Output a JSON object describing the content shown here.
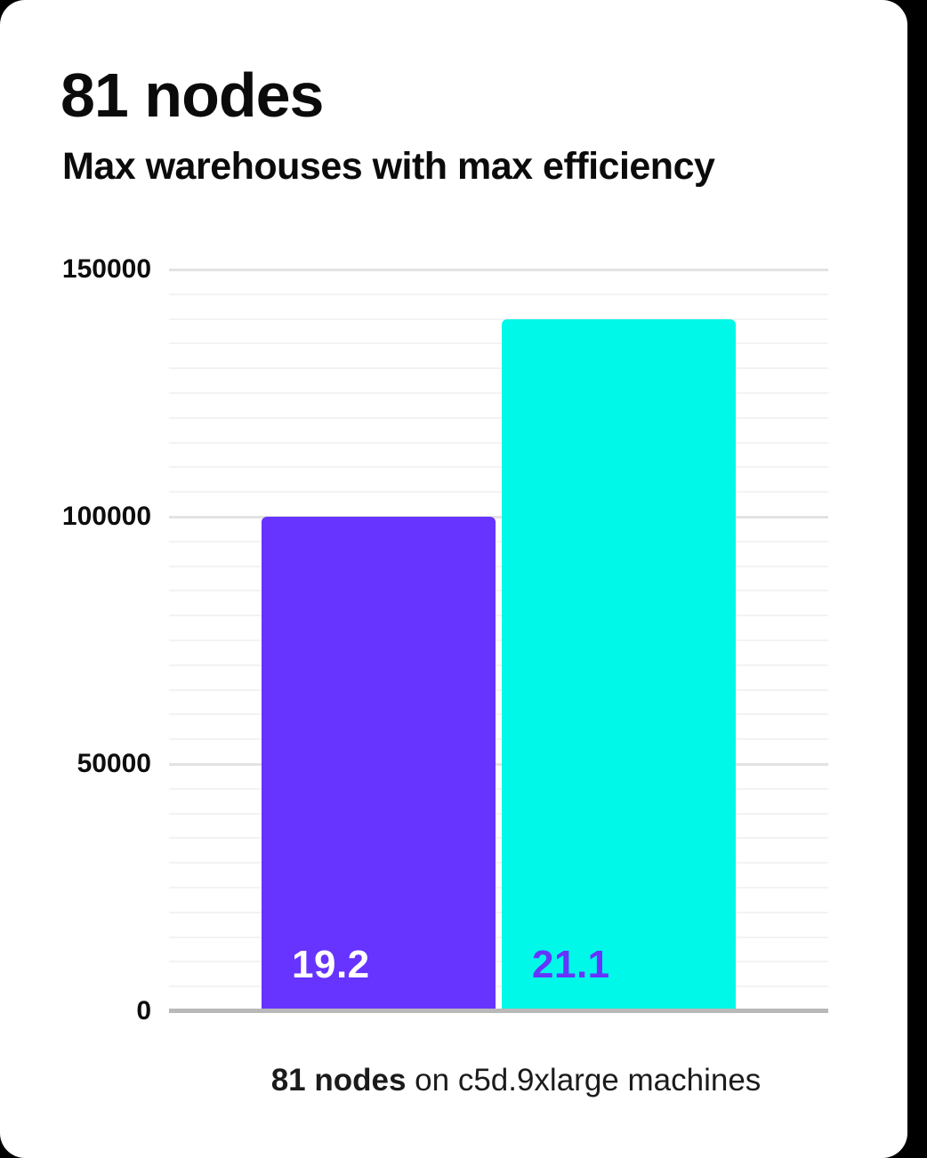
{
  "page": {
    "background_color": "#000000",
    "card_background_color": "#ffffff"
  },
  "header": {
    "title": "81 nodes",
    "subtitle": "Max warehouses with max efficiency"
  },
  "chart_data": {
    "type": "bar",
    "title": "81 nodes",
    "subtitle": "Max warehouses with max efficiency",
    "categories": [
      "19.2",
      "21.1"
    ],
    "values": [
      100000,
      140000
    ],
    "series": [
      {
        "name": "19.2",
        "value": 100000,
        "bar_color": "#6633ff",
        "label_color": "#ffffff"
      },
      {
        "name": "21.1",
        "value": 140000,
        "bar_color": "#00f8e8",
        "label_color": "#6633ff"
      }
    ],
    "xlabel": "",
    "ylabel": "",
    "ylim": [
      0,
      150000
    ],
    "ytick_labels": [
      "0",
      "50000",
      "100000",
      "150000"
    ],
    "ytick_values": [
      0,
      50000,
      100000,
      150000
    ],
    "minor_grid_step": 5000,
    "grid": "horizontal",
    "legend_position": "none",
    "bar_value_labels_inside": true
  },
  "caption": {
    "bold": "81 nodes",
    "rest": " on c5d.9xlarge machines"
  },
  "colors": {
    "accent_purple": "#6633ff",
    "accent_cyan": "#00f8e8",
    "axis_baseline": "#b9b9b9",
    "gridline_major": "#e3e3e3",
    "gridline_minor": "#f3f3f3",
    "text_primary": "#0b0b0b"
  }
}
